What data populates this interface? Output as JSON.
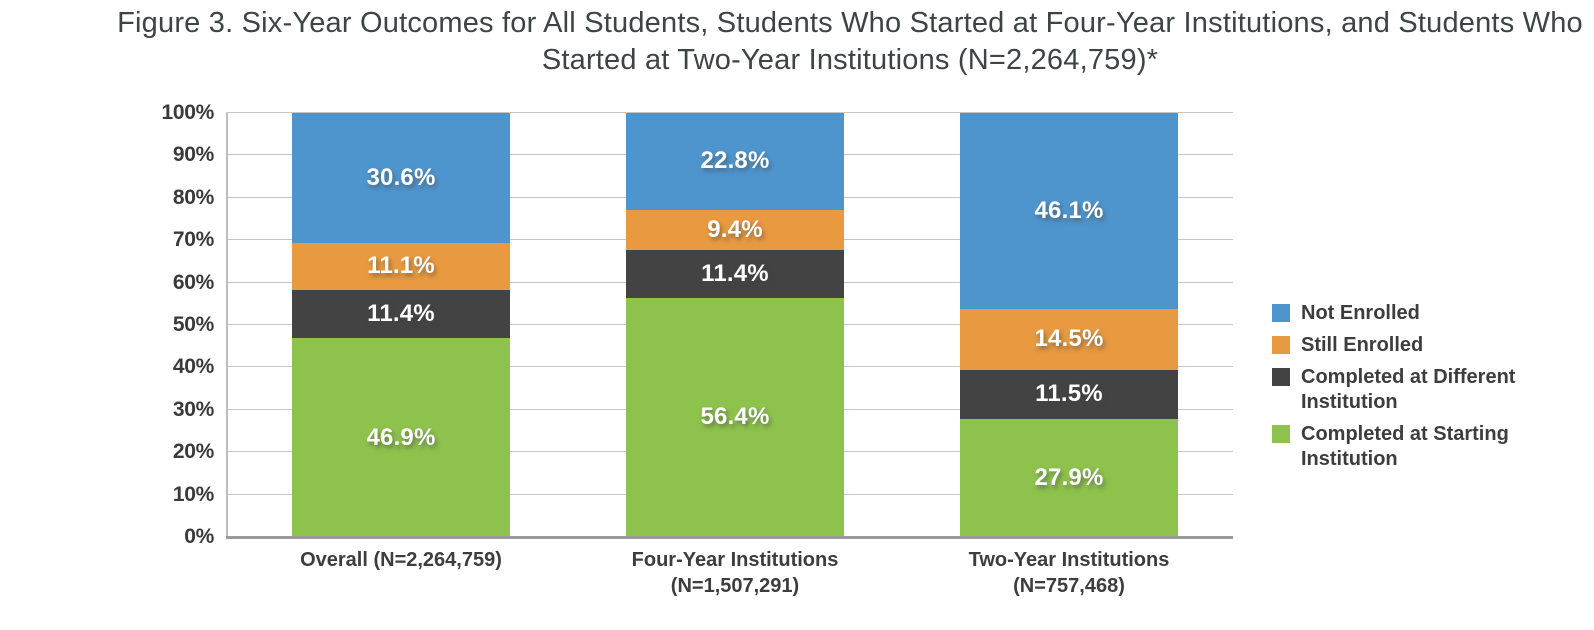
{
  "title": {
    "line1": "Figure 3. Six-Year Outcomes for All Students, Students Who Started at Four-Year Institutions, and Students Who",
    "line2": "Started at Two-Year Institutions (N=2,264,759)*"
  },
  "chart_data": {
    "type": "bar",
    "subtype": "stacked-100-percent",
    "title": "Figure 3. Six-Year Outcomes for All Students, Students Who Started at Four-Year Institutions, and Students Who Started at Two-Year Institutions (N=2,264,759)*",
    "categories": [
      "Overall (N=2,264,759)",
      "Four-Year Institutions (N=1,507,291)",
      "Two-Year Institutions (N=757,468)"
    ],
    "category_label_lines": [
      [
        "Overall (N=2,264,759)"
      ],
      [
        "Four-Year Institutions",
        "(N=1,507,291)"
      ],
      [
        "Two-Year Institutions",
        "(N=757,468)"
      ]
    ],
    "series_bottom_to_top": [
      {
        "name": "Completed at Starting Institution",
        "color": "#8dc24c",
        "values": [
          46.9,
          56.4,
          27.9
        ]
      },
      {
        "name": "Completed at Different Institution",
        "color": "#434343",
        "values": [
          11.4,
          11.4,
          11.5
        ]
      },
      {
        "name": "Still Enrolled",
        "color": "#e9993f",
        "values": [
          11.1,
          9.4,
          14.5
        ]
      },
      {
        "name": "Not Enrolled",
        "color": "#4e95ce",
        "values": [
          30.6,
          22.8,
          46.1
        ]
      }
    ],
    "value_suffix": "%",
    "ylim": [
      0,
      100
    ],
    "y_ticks": [
      "0%",
      "10%",
      "20%",
      "30%",
      "40%",
      "50%",
      "60%",
      "70%",
      "80%",
      "90%",
      "100%"
    ],
    "grid": true,
    "legend": {
      "position": "right",
      "items": [
        {
          "label": "Not Enrolled",
          "color": "#4e95ce"
        },
        {
          "label": "Still Enrolled",
          "color": "#e9993f"
        },
        {
          "label": "Completed at Different Institution",
          "color": "#434343"
        },
        {
          "label": "Completed at Starting Institution",
          "color": "#8dc24c"
        }
      ]
    },
    "colors": {
      "gridline": "#c6c6c6",
      "axis_line": "#9a9a9a",
      "tick_text": "#3a3a3a",
      "title_text": "#3e4347",
      "segment_label_text": "#ffffff"
    }
  }
}
